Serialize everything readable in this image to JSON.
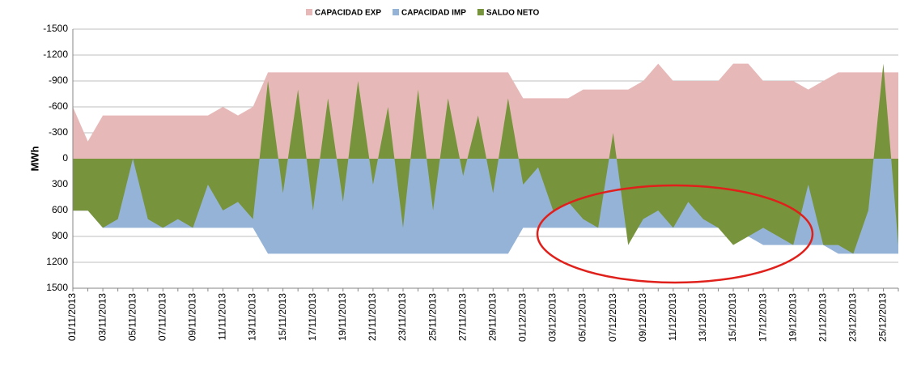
{
  "chart_data": {
    "type": "area",
    "y_label": "MWh",
    "inverted_y": true,
    "grid": true,
    "legend": "top",
    "ylim": [
      -1500,
      1500
    ],
    "yticks": [
      -1500,
      -1200,
      -900,
      -600,
      -300,
      0,
      300,
      600,
      900,
      1200,
      1500
    ],
    "categories": [
      "01/11/2013",
      null,
      "03/11/2013",
      null,
      "05/11/2013",
      null,
      "07/11/2013",
      null,
      "09/11/2013",
      null,
      "11/11/2013",
      null,
      "13/11/2013",
      null,
      "15/11/2013",
      null,
      "17/11/2013",
      null,
      "19/11/2013",
      null,
      "21/11/2013",
      null,
      "23/11/2013",
      null,
      "25/11/2013",
      null,
      "27/11/2013",
      null,
      "29/11/2013",
      null,
      "01/12/2013",
      null,
      "03/12/2013",
      null,
      "05/12/2013",
      null,
      "07/12/2013",
      null,
      "09/12/2013",
      null,
      "11/12/2013",
      null,
      "13/12/2013",
      null,
      "15/12/2013",
      null,
      "17/12/2013",
      null,
      "19/12/2013",
      null,
      "21/12/2013",
      null,
      "23/12/2013",
      null,
      "25/12/2013",
      null
    ],
    "series": [
      {
        "name": "CAPACIDAD EXP",
        "color": "#e6b9b8",
        "values": [
          -600,
          -200,
          -500,
          -500,
          -500,
          -500,
          -500,
          -500,
          -500,
          -500,
          -600,
          -500,
          -600,
          -1000,
          -1000,
          -1000,
          -1000,
          -1000,
          -1000,
          -1000,
          -1000,
          -1000,
          -1000,
          -1000,
          -1000,
          -1000,
          -1000,
          -1000,
          -1000,
          -1000,
          -700,
          -700,
          -700,
          -700,
          -800,
          -800,
          -800,
          -800,
          -900,
          -1100,
          -900,
          -900,
          -900,
          -900,
          -1100,
          -1100,
          -900,
          -900,
          -900,
          -800,
          -900,
          -1000,
          -1000,
          -1000,
          -1000,
          -1000
        ]
      },
      {
        "name": "CAPACIDAD IMP",
        "color": "#95b3d7",
        "values": [
          600,
          600,
          800,
          800,
          800,
          800,
          800,
          800,
          800,
          800,
          800,
          800,
          800,
          1100,
          1100,
          1100,
          1100,
          1100,
          1100,
          1100,
          1100,
          1100,
          1100,
          1100,
          1100,
          1100,
          1100,
          1100,
          1100,
          1100,
          800,
          800,
          800,
          800,
          800,
          800,
          800,
          800,
          800,
          800,
          800,
          800,
          800,
          800,
          800,
          900,
          1000,
          1000,
          1000,
          1000,
          1000,
          1100,
          1100,
          1100,
          1100,
          1100
        ]
      },
      {
        "name": "SALDO NETO",
        "color": "#77933c",
        "values": [
          600,
          600,
          800,
          700,
          0,
          700,
          800,
          700,
          800,
          300,
          600,
          500,
          700,
          -900,
          400,
          -800,
          600,
          -700,
          500,
          -900,
          300,
          -600,
          800,
          -800,
          600,
          -700,
          200,
          -500,
          400,
          -700,
          300,
          100,
          600,
          500,
          700,
          800,
          -300,
          1000,
          700,
          600,
          800,
          500,
          700,
          800,
          1000,
          900,
          800,
          900,
          1000,
          300,
          1000,
          1000,
          1100,
          600,
          -1100,
          1000
        ]
      }
    ]
  }
}
